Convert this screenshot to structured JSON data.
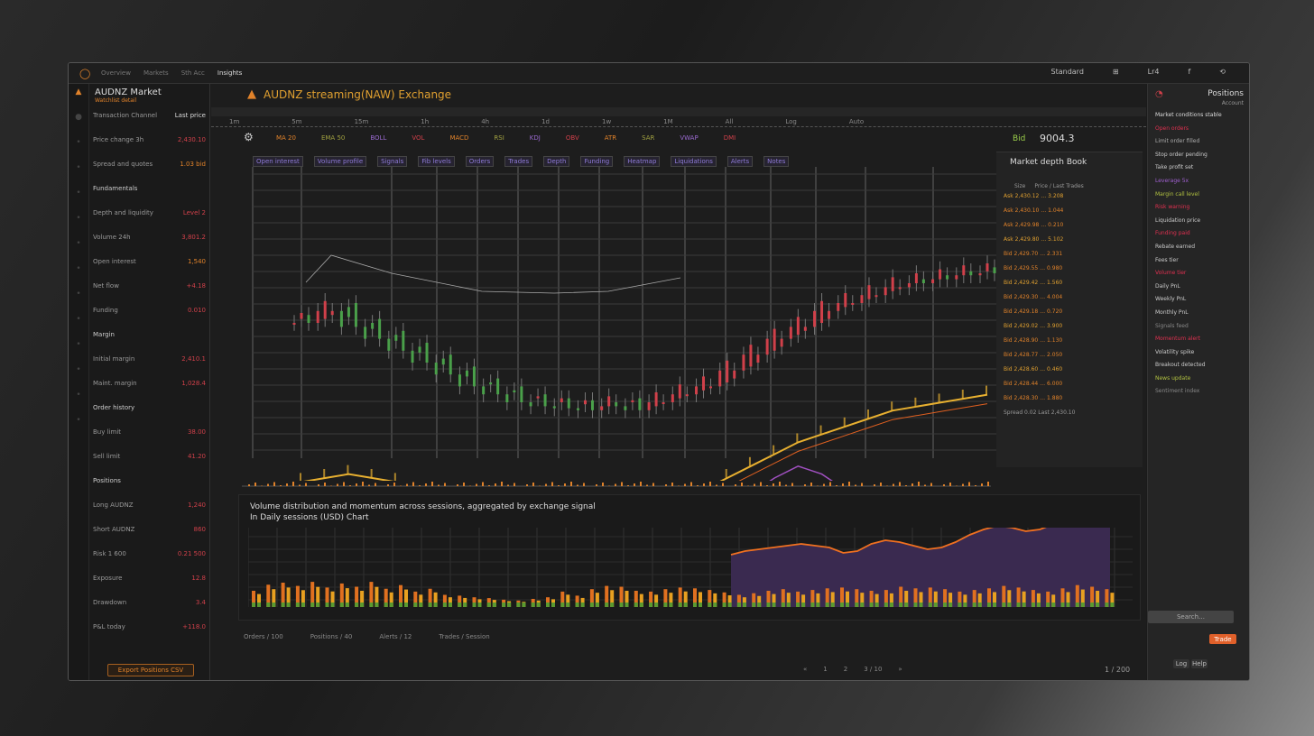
{
  "topbar": {
    "logo": "◯",
    "menu": [
      "Overview",
      "Markets",
      "Sth Acc",
      "Insights"
    ],
    "right": [
      "Standard",
      "⊞",
      "Lr4",
      "f",
      "⟲"
    ]
  },
  "sidebar_icons": [
    "warning-icon",
    "circle-icon",
    "dot-icon",
    "dot-icon",
    "dot-icon",
    "dot-icon",
    "dot-icon",
    "dot-icon",
    "dot-icon",
    "dot-icon",
    "dot-icon",
    "dot-icon",
    "dot-icon",
    "dot-icon"
  ],
  "left_panel": {
    "title": "AUDNZ Market",
    "subtitle": "Watchlist detail",
    "rows": [
      {
        "l": "Transaction Channel",
        "r": "Last price",
        "c": "wh"
      },
      {
        "l": "Price change 3h",
        "r": "2,430.10",
        "c": "rd"
      },
      {
        "l": "Spread and quotes",
        "r": "1.03 bid",
        "c": "or"
      },
      {
        "l": "Fundamentals",
        "r": "",
        "c": "wh"
      },
      {
        "l": "Depth and liquidity",
        "r": "Level 2",
        "c": "rd"
      },
      {
        "l": "Volume 24h",
        "r": "3,801.2",
        "c": "rd"
      },
      {
        "l": "Open interest",
        "r": "1,540",
        "c": "or"
      },
      {
        "l": "Net flow",
        "r": "+4.18",
        "c": "rd"
      },
      {
        "l": "Funding",
        "r": "0.010",
        "c": "rd"
      },
      {
        "l": "Margin",
        "r": "",
        "c": "wh"
      },
      {
        "l": "Initial margin",
        "r": "2,410.1",
        "c": "rd"
      },
      {
        "l": "Maint. margin",
        "r": "1,028.4",
        "c": "rd"
      },
      {
        "l": "Order history",
        "r": "",
        "c": "wh"
      },
      {
        "l": "Buy limit",
        "r": "38.00",
        "c": "rd"
      },
      {
        "l": "Sell limit",
        "r": "41.20",
        "c": "rd"
      },
      {
        "l": "Positions",
        "r": "",
        "c": "wh"
      },
      {
        "l": "Long AUDNZ",
        "r": "1,240",
        "c": "rd"
      },
      {
        "l": "Short AUDNZ",
        "r": "860",
        "c": "rd"
      },
      {
        "l": "Risk 1 600",
        "r": "0.21 500",
        "c": "rd"
      },
      {
        "l": "Exposure",
        "r": "12.8",
        "c": "rd"
      },
      {
        "l": "Drawdown",
        "r": "3.4",
        "c": "rd"
      },
      {
        "l": "P&L today",
        "r": "+118.0",
        "c": "rd"
      }
    ],
    "button": "Export Positions CSV"
  },
  "main": {
    "title": "AUDNZ streaming(NAW) Exchange",
    "tabs": [
      "1m",
      "5m",
      "15m",
      "1h",
      "4h",
      "1d",
      "1w",
      "1M",
      "All",
      "Log",
      "Auto"
    ],
    "indicators": [
      "MA 20",
      "EMA 50",
      "BOLL",
      "VOL",
      "MACD",
      "RSI",
      "KDJ",
      "OBV",
      "ATR",
      "SAR",
      "VWAP",
      "DMI"
    ],
    "price_label": "Bid",
    "price": "9004.3",
    "header_chips": [
      "Open interest",
      "Volume profile",
      "Signals",
      "Fib levels",
      "Orders",
      "Trades",
      "Depth",
      "Funding",
      "Heatmap",
      "Liquidations",
      "Alerts",
      "Notes"
    ],
    "lower_title_1": "Volume distribution and momentum across sessions, aggregated by exchange signal",
    "lower_title_2": "In Daily sessions (USD) Chart",
    "footer": [
      "Orders / 100",
      "Positions / 40",
      "Alerts / 12",
      "Trades / Session"
    ],
    "pager": [
      "«",
      "1",
      "2",
      "3 / 10",
      "»"
    ],
    "pager_right": "1 / 200"
  },
  "order_book": {
    "title": "Market depth Book",
    "header": [
      "Size",
      "Price / Last Trades"
    ],
    "rows": [
      "Ask 2,430.12 … 3.208",
      "Ask 2,430.10 … 1.044",
      "Ask 2,429.98 … 0.210",
      "Ask 2,429.80 … 5.102",
      "Bid 2,429.70 … 2.331",
      "Bid 2,429.55 … 0.980",
      "Bid 2,429.42 … 1.560",
      "Bid 2,429.30 … 4.004",
      "Bid 2,429.18 … 0.720",
      "Bid 2,429.02 … 3.900",
      "Bid 2,428.90 … 1.130",
      "Bid 2,428.77 … 2.050",
      "Bid 2,428.60 … 0.460",
      "Bid 2,428.44 … 6.000",
      "Bid 2,428.30 … 1.880"
    ],
    "footer": "Spread 0.02  Last 2,430.10"
  },
  "right_panel": {
    "title": "Positions",
    "subtitle": "Account",
    "items": [
      "Market conditions stable",
      "Open orders",
      "Limit order filled",
      "Stop order pending",
      "Take profit set",
      "Leverage 5x",
      "Margin call level",
      "Risk warning",
      "Liquidation price",
      "Funding paid",
      "Rebate earned",
      "Fees tier",
      "Volume tier",
      "Daily PnL",
      "Weekly PnL",
      "Monthly PnL",
      "Signals feed",
      "Momentum alert",
      "Volatility spike",
      "Breakout detected",
      "News update",
      "Sentiment index"
    ],
    "search": "Search…",
    "cta": "Trade",
    "bottom": [
      "Log",
      "Help"
    ]
  },
  "colors": {
    "accent": "#e0822a",
    "up": "#d0404a",
    "down": "#4aa04a",
    "ma": "#e8b030",
    "band": "#a050c0"
  },
  "chart_data": [
    {
      "type": "candlestick",
      "close": [
        2412,
        2418,
        2410,
        2404,
        2398,
        2392,
        2386,
        2380,
        2376,
        2372,
        2370,
        2369,
        2368,
        2370,
        2368,
        2372,
        2376,
        2380,
        2388,
        2396,
        2404,
        2410,
        2418,
        2422,
        2426,
        2430,
        2432,
        2434,
        2436,
        2437
      ],
      "ma": [
        2348,
        2350,
        2352,
        2350,
        2348,
        2344,
        2340,
        2336,
        2334,
        2332,
        2332,
        2331,
        2331,
        2332,
        2333,
        2336,
        2340,
        2344,
        2350,
        2356,
        2362,
        2368,
        2372,
        2376,
        2380,
        2384,
        2386,
        2388,
        2390,
        2392
      ],
      "band": [
        2330,
        2328,
        2324,
        2318,
        2312,
        2306,
        2302,
        2300,
        2300,
        2302,
        2304,
        2306,
        2308,
        2310,
        2312,
        2316,
        2320,
        2326,
        2334,
        2342,
        2350,
        2356,
        2352,
        2344,
        2336,
        2330,
        2334,
        2338,
        2340,
        2342
      ]
    },
    {
      "type": "bar+area",
      "volume": [
        40,
        55,
        60,
        52,
        62,
        48,
        58,
        50,
        62,
        45,
        54,
        38,
        45,
        30,
        28,
        24,
        22,
        18,
        16,
        20,
        24,
        38,
        28,
        44,
        52,
        50,
        40,
        38,
        44,
        48,
        46,
        42,
        36,
        30,
        34,
        40,
        44,
        38,
        42,
        46,
        48,
        44,
        40,
        42,
        50,
        46,
        48,
        44,
        38,
        42,
        46,
        52,
        48,
        42,
        38,
        46,
        54,
        50,
        44
      ],
      "area": [
        58,
        62,
        64,
        66,
        68,
        70,
        68,
        66,
        60,
        62,
        70,
        74,
        72,
        68,
        64,
        66,
        72,
        80,
        86,
        90,
        88,
        84,
        86,
        92,
        96,
        98,
        94,
        98
      ]
    }
  ]
}
